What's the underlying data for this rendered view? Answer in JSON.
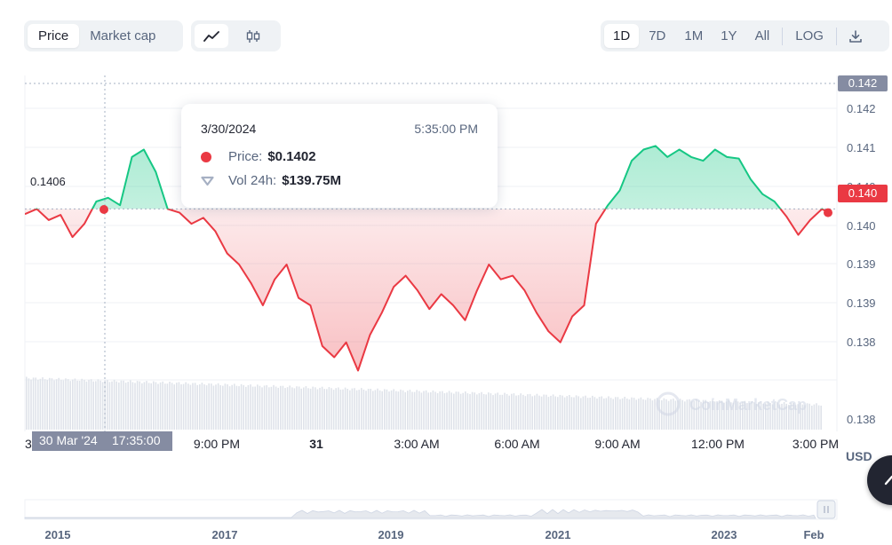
{
  "toolbar": {
    "metric_tabs": [
      {
        "label": "Price",
        "active": true
      },
      {
        "label": "Market cap",
        "active": false
      }
    ],
    "chart_kind_icons": [
      "line-chart-icon",
      "candlestick-icon"
    ],
    "ranges": [
      {
        "label": "1D",
        "active": true
      },
      {
        "label": "7D",
        "active": false
      },
      {
        "label": "1M",
        "active": false
      },
      {
        "label": "1Y",
        "active": false
      },
      {
        "label": "All",
        "active": false
      }
    ],
    "log_label": "LOG",
    "download_icon": "download-icon"
  },
  "tooltip": {
    "date": "3/30/2024",
    "time": "5:35:00 PM",
    "price_label": "Price:",
    "price_value": "$0.1402",
    "vol_label": "Vol 24h:",
    "vol_value": "$139.75M"
  },
  "crosshair": {
    "x_label": "30 Mar '24",
    "x_time": "17:35:00",
    "y_label": "0.142"
  },
  "price_badge": "0.140",
  "open_price_label": "0.1406",
  "currency": "USD",
  "watermark": "CoinMarketCap",
  "colors": {
    "up": "#16c784",
    "down": "#ea3943",
    "badge_gray": "#858ca2",
    "axis_text": "#58667e"
  },
  "chart_data": {
    "type": "line",
    "y_tick_labels": [
      "0.142",
      "0.141",
      "0.140",
      "0.140",
      "0.139",
      "0.139",
      "0.138",
      "0.138"
    ],
    "x_tick_labels": [
      "3",
      "9:00 PM",
      "31",
      "3:00 AM",
      "6:00 AM",
      "9:00 AM",
      "12:00 PM",
      "3:00 PM"
    ],
    "baseline": 0.1406,
    "ylim": [
      0.1376,
      0.1424
    ],
    "grid": true,
    "x_axis": "hours (30 Mar 2024 12:30 PM – 31 Mar 2024 3:45 PM)",
    "series": [
      {
        "x": [
          0,
          0.4,
          0.8,
          1.2,
          1.6,
          2.0,
          2.4,
          2.8,
          3.2,
          3.6,
          4.0,
          4.4,
          4.8,
          5.2,
          5.6,
          6.0,
          6.4,
          6.8,
          7.2,
          7.6,
          8.0,
          8.4,
          8.8,
          9.2,
          9.6,
          10.0,
          10.4,
          10.8,
          11.2,
          11.6,
          12.0,
          12.4,
          12.8,
          13.2,
          13.6,
          14.0,
          14.4,
          14.8,
          15.2,
          15.6,
          16.0,
          16.4,
          16.8,
          17.2,
          17.6,
          18.0,
          18.4,
          18.8,
          19.2,
          19.6,
          20.0,
          20.4,
          20.8,
          21.2,
          21.6,
          22.0,
          22.4,
          22.8,
          23.2,
          23.6,
          24.0,
          24.4,
          24.8,
          25.2,
          25.6,
          26.0,
          26.4,
          26.8,
          27.0
        ],
        "y": [
          0.14053,
          0.1406,
          0.14045,
          0.14052,
          0.14022,
          0.1404,
          0.1407,
          0.14075,
          0.14065,
          0.1413,
          0.1414,
          0.1411,
          0.1406,
          0.14055,
          0.1404,
          0.14048,
          0.1403,
          0.14,
          0.13985,
          0.1396,
          0.1393,
          0.13965,
          0.13985,
          0.1394,
          0.1393,
          0.13875,
          0.1386,
          0.1388,
          0.13842,
          0.1389,
          0.1392,
          0.13955,
          0.1397,
          0.1395,
          0.13925,
          0.13945,
          0.1393,
          0.1391,
          0.1395,
          0.13985,
          0.13965,
          0.1397,
          0.1395,
          0.1392,
          0.13895,
          0.1388,
          0.13915,
          0.1393,
          0.1404,
          0.14065,
          0.14085,
          0.14125,
          0.1414,
          0.14145,
          0.1413,
          0.1414,
          0.1413,
          0.14125,
          0.1414,
          0.1413,
          0.14128,
          0.141,
          0.1408,
          0.1407,
          0.1405,
          0.14025,
          0.14045,
          0.1406,
          0.14055
        ]
      }
    ]
  },
  "navigator": {
    "year_labels": [
      "2015",
      "2017",
      "2019",
      "2021",
      "2023",
      "Feb"
    ],
    "handle_icon": "pause-handle-icon"
  },
  "fab_icon": "chevron-up-icon"
}
